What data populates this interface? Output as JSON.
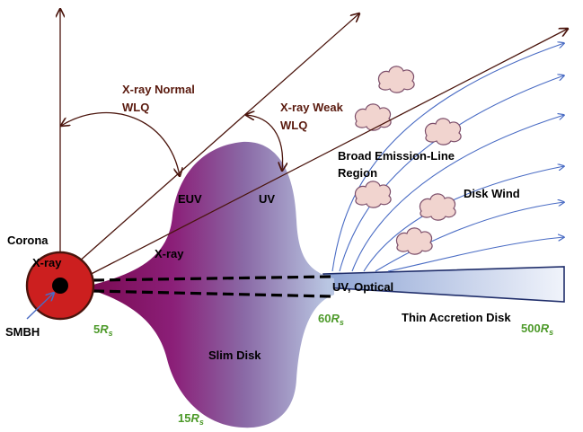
{
  "labels": {
    "corona": "Corona",
    "xray_core": "X-ray",
    "smbh": "SMBH",
    "xray_normal_line1": "X-ray Normal",
    "xray_normal_line2": "WLQ",
    "xray_weak_line1": "X-ray Weak",
    "xray_weak_line2": "WLQ",
    "euv": "EUV",
    "uv": "UV",
    "xray_disk": "X-ray",
    "slim_disk": "Slim Disk",
    "uv_optical": "UV, Optical",
    "thin_disk": "Thin Accretion Disk",
    "blr_line1": "Broad Emission-Line",
    "blr_line2": "Region",
    "disk_wind": "Disk Wind"
  },
  "radii": [
    {
      "value": "5",
      "symbol": "R",
      "subscript": "s"
    },
    {
      "value": "15",
      "symbol": "R",
      "subscript": "s"
    },
    {
      "value": "60",
      "symbol": "R",
      "subscript": "s"
    },
    {
      "value": "500",
      "symbol": "R",
      "subscript": "s"
    }
  ],
  "colors": {
    "arrow": "#4a140c",
    "wind": "#4a6cc4",
    "cloud_fill": "#f1d4cf",
    "cloud_stroke": "#7c4e6a",
    "core_fill": "#cc1f1f",
    "radius_label": "#4d9a2a",
    "disk_outline": "#1f2d6a"
  }
}
